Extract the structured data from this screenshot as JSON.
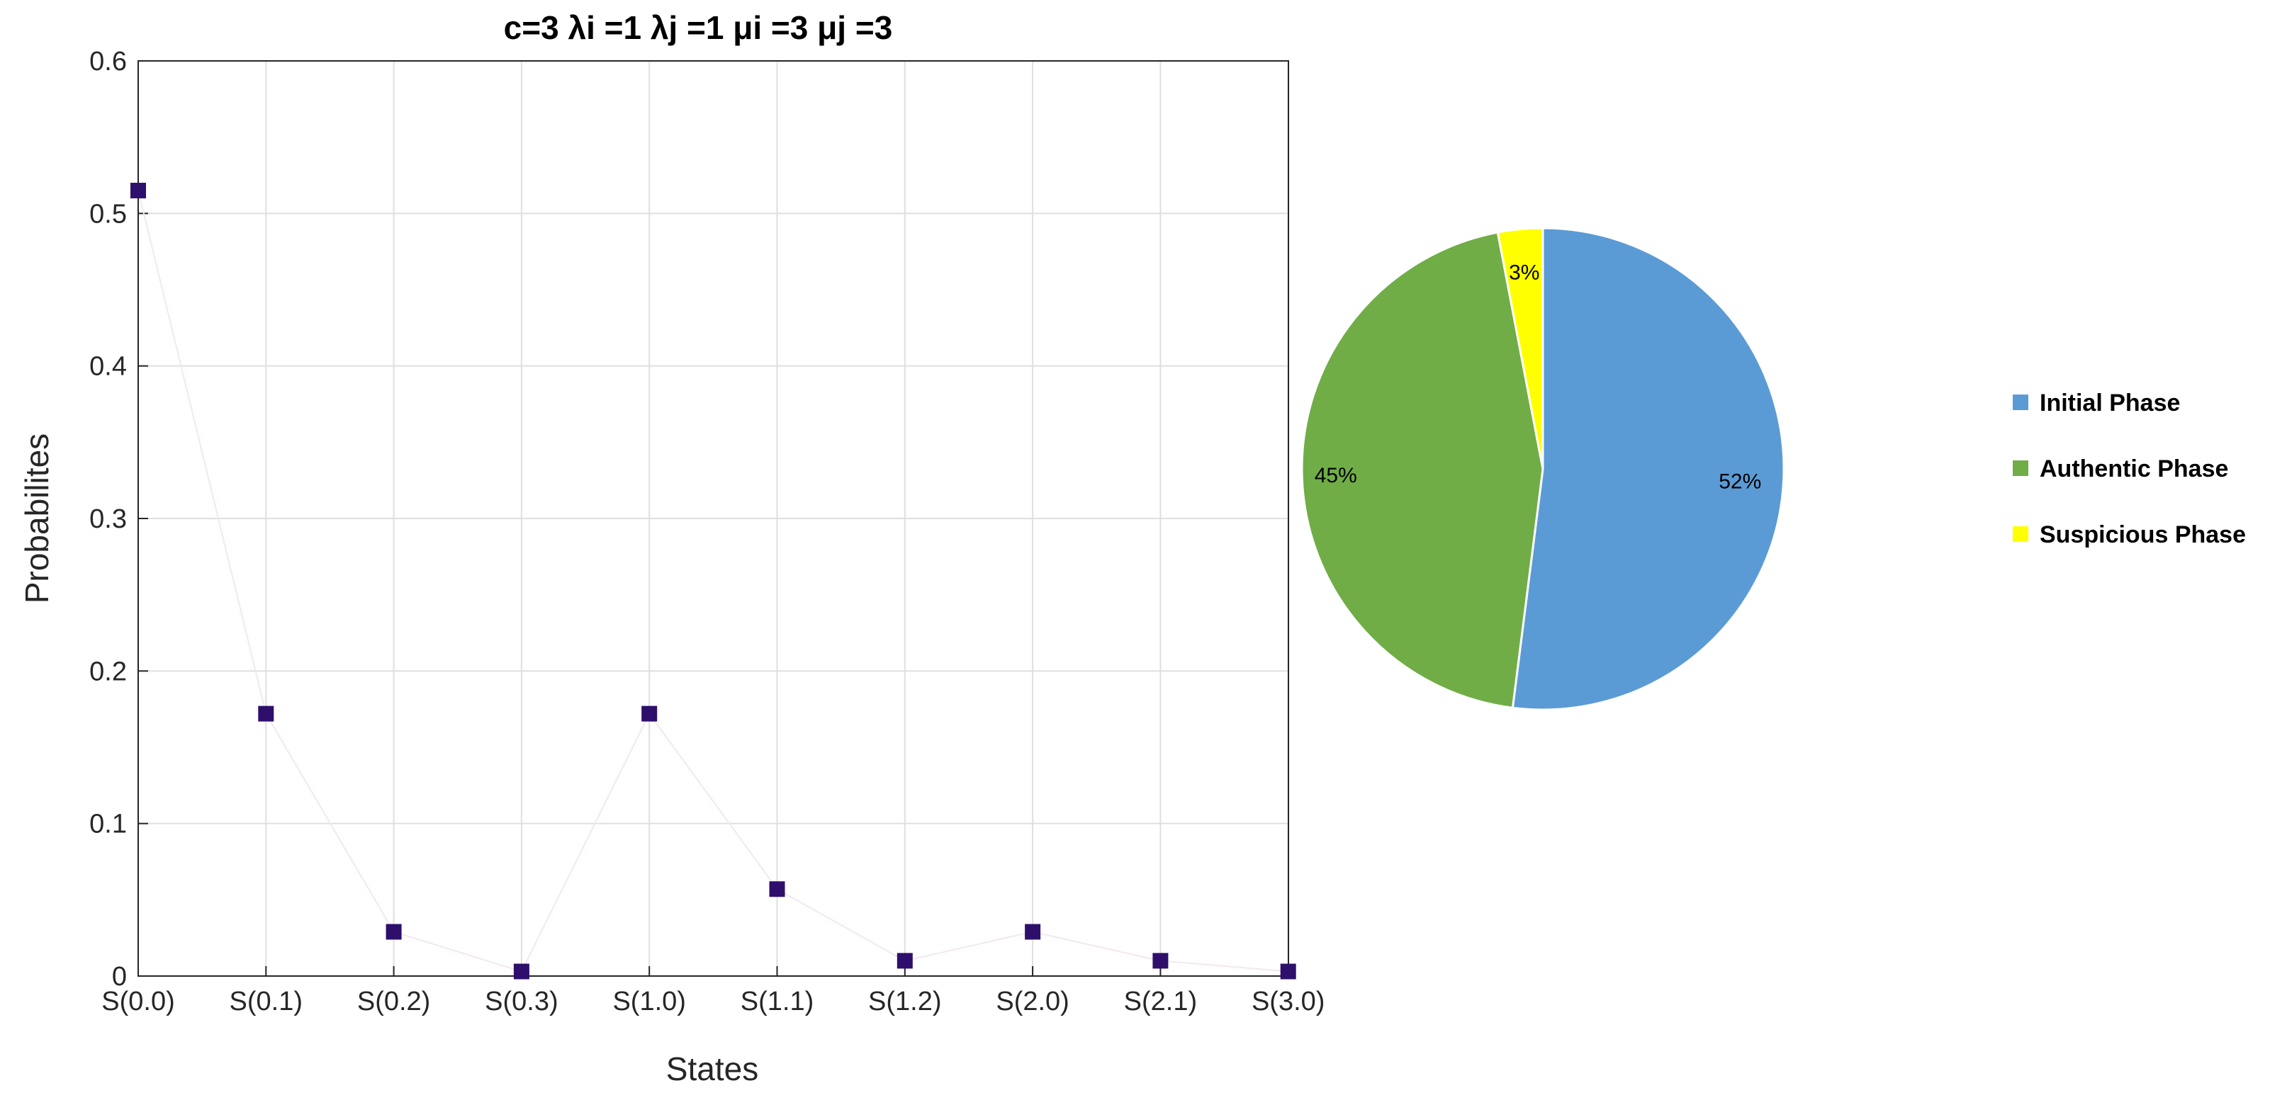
{
  "chart_data": [
    {
      "type": "scatter",
      "title": "c=3 λi =1 λj =1 μi =3 μj =3",
      "xlabel": "States",
      "ylabel": "Probabilites",
      "categories": [
        "S(0.0)",
        "S(0.1)",
        "S(0.2)",
        "S(0.3)",
        "S(1.0)",
        "S(1.1)",
        "S(1.2)",
        "S(2.0)",
        "S(2.1)",
        "S(3.0)"
      ],
      "values": [
        0.515,
        0.172,
        0.029,
        0.003,
        0.172,
        0.057,
        0.01,
        0.029,
        0.01,
        0.003
      ],
      "ylim": [
        0,
        0.6
      ],
      "yticks": [
        "0",
        "0.1",
        "0.2",
        "0.3",
        "0.4",
        "0.5",
        "0.6"
      ],
      "grid": true,
      "marker_color": "#2e0f6b"
    },
    {
      "type": "pie",
      "slices": [
        {
          "name": "Initial Phase",
          "value": 52,
          "label": "52%",
          "color": "#5b9bd5"
        },
        {
          "name": "Authentic Phase",
          "value": 45,
          "label": "45%",
          "color": "#70ad47"
        },
        {
          "name": "Suspicious Phase",
          "value": 3,
          "label": "3%",
          "color": "#ffff00"
        }
      ],
      "legend": "right"
    }
  ]
}
